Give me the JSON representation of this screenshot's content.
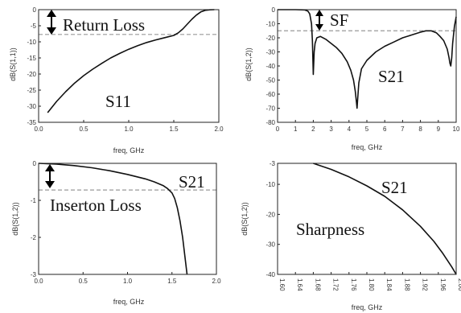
{
  "chart_data": [
    {
      "id": "s11",
      "type": "line",
      "xlabel": "freq, GHz",
      "ylabel": "dB(S(1,1))",
      "xlim": [
        0.0,
        2.0
      ],
      "ylim": [
        -35,
        0
      ],
      "xticks": [
        0.0,
        0.5,
        1.0,
        1.5,
        2.0
      ],
      "xtick_labels": [
        "0.0",
        "0.5",
        "1.0",
        "1.5",
        "2.0"
      ],
      "yticks": [
        0,
        -5,
        -10,
        -15,
        -20,
        -25,
        -30,
        -35
      ],
      "ytick_labels": [
        "0",
        "-5",
        "-10",
        "-15",
        "-20",
        "-25",
        "-30",
        "-35"
      ],
      "series": [
        {
          "x": [
            0.1,
            0.2,
            0.3,
            0.4,
            0.5,
            0.6,
            0.7,
            0.8,
            0.9,
            1.0,
            1.1,
            1.2,
            1.3,
            1.4,
            1.5,
            1.55,
            1.6,
            1.65,
            1.7,
            1.75,
            1.8,
            1.85,
            1.9,
            1.95
          ],
          "values": [
            -32.0,
            -28.5,
            -25.5,
            -22.8,
            -20.5,
            -18.5,
            -16.7,
            -15.0,
            -13.6,
            -12.3,
            -11.2,
            -10.2,
            -9.4,
            -8.7,
            -8.0,
            -7.2,
            -6.0,
            -4.5,
            -3.0,
            -1.7,
            -0.7,
            -0.2,
            -0.05,
            0.0
          ]
        }
      ],
      "reference_line": -7.7,
      "annotations": [
        "Return Loss",
        "S11"
      ]
    },
    {
      "id": "s21-wide",
      "type": "line",
      "xlabel": "freq, GHz",
      "ylabel": "dB(S(1,2))",
      "xlim": [
        0,
        10
      ],
      "ylim": [
        -80,
        0
      ],
      "xticks": [
        0,
        1,
        2,
        3,
        4,
        5,
        6,
        7,
        8,
        9,
        10
      ],
      "xtick_labels": [
        "0",
        "1",
        "2",
        "3",
        "4",
        "5",
        "6",
        "7",
        "8",
        "9",
        "10"
      ],
      "yticks": [
        0,
        -10,
        -20,
        -30,
        -40,
        -50,
        -60,
        -70,
        -80
      ],
      "ytick_labels": [
        "0",
        "-10",
        "-20",
        "-30",
        "-40",
        "-50",
        "-60",
        "-70",
        "-80"
      ],
      "series": [
        {
          "x": [
            0.0,
            1.0,
            1.5,
            1.7,
            1.8,
            1.9,
            1.95,
            2.0,
            2.05,
            2.1,
            2.2,
            2.4,
            2.7,
            3.0,
            3.3,
            3.6,
            3.9,
            4.1,
            4.25,
            4.35,
            4.42,
            4.45,
            4.48,
            4.55,
            4.7,
            5.0,
            5.5,
            6.0,
            6.5,
            7.0,
            7.5,
            8.0,
            8.3,
            8.6,
            8.9,
            9.1,
            9.3,
            9.5,
            9.6,
            9.65,
            9.7,
            9.75,
            9.8,
            9.9,
            10.0
          ],
          "values": [
            0.0,
            0.0,
            -0.2,
            -1.0,
            -3.0,
            -10.0,
            -22.0,
            -46.0,
            -30.0,
            -24.0,
            -20.0,
            -19.0,
            -21.0,
            -24.0,
            -27.0,
            -31.0,
            -37.0,
            -43.0,
            -50.0,
            -58.0,
            -66.0,
            -70.0,
            -64.0,
            -52.0,
            -42.0,
            -36.0,
            -30.0,
            -26.0,
            -23.0,
            -20.0,
            -18.0,
            -16.0,
            -15.0,
            -15.0,
            -16.5,
            -19.0,
            -22.0,
            -28.0,
            -34.0,
            -38.0,
            -40.0,
            -34.0,
            -24.0,
            -12.0,
            -5.0
          ]
        }
      ],
      "reference_line": -15,
      "annotations": [
        "SF",
        "S21"
      ]
    },
    {
      "id": "s21-passband",
      "type": "line",
      "xlabel": "freq, GHz",
      "ylabel": "dB(S(1,2))",
      "xlim": [
        0.0,
        2.0
      ],
      "ylim": [
        -3,
        0
      ],
      "xticks": [
        0.0,
        0.5,
        1.0,
        1.5,
        2.0
      ],
      "xtick_labels": [
        "0.0",
        "0.5",
        "1.0",
        "1.5",
        "2.0"
      ],
      "yticks": [
        0,
        -1,
        -2,
        -3
      ],
      "ytick_labels": [
        "0",
        "-1",
        "-2",
        "-3"
      ],
      "series": [
        {
          "x": [
            0.0,
            0.2,
            0.4,
            0.6,
            0.8,
            1.0,
            1.2,
            1.3,
            1.4,
            1.45,
            1.5,
            1.53,
            1.56,
            1.59,
            1.62,
            1.65,
            1.67
          ],
          "values": [
            0.0,
            -0.02,
            -0.06,
            -0.12,
            -0.2,
            -0.3,
            -0.42,
            -0.5,
            -0.6,
            -0.68,
            -0.8,
            -0.95,
            -1.2,
            -1.55,
            -2.0,
            -2.6,
            -3.0
          ]
        }
      ],
      "reference_line": -0.72,
      "annotations": [
        "Inserton Loss",
        "S21"
      ]
    },
    {
      "id": "s21-sharpness",
      "type": "line",
      "xlabel": "freq, GHz",
      "ylabel": "dB(S(1,2))",
      "xlim": [
        1.6,
        2.0
      ],
      "ylim": [
        -40,
        -3
      ],
      "xticks": [
        1.6,
        1.64,
        1.68,
        1.72,
        1.76,
        1.8,
        1.84,
        1.88,
        1.92,
        1.96,
        2.0
      ],
      "xtick_labels": [
        "1.60",
        "1.64",
        "1.68",
        "1.72",
        "1.76",
        "1.80",
        "1.84",
        "1.88",
        "1.92",
        "1.96",
        "2.00"
      ],
      "yticks": [
        -3,
        -10,
        -20,
        -30,
        -40
      ],
      "ytick_labels": [
        "-3",
        "-10",
        "-20",
        "-30",
        "-40"
      ],
      "series": [
        {
          "x": [
            1.68,
            1.72,
            1.76,
            1.8,
            1.84,
            1.88,
            1.92,
            1.95,
            1.97,
            1.99,
            2.0
          ],
          "values": [
            -3.0,
            -5.0,
            -7.5,
            -10.5,
            -14.0,
            -18.5,
            -24.0,
            -29.0,
            -33.0,
            -37.5,
            -40.0
          ]
        }
      ],
      "reference_line": null,
      "annotations": [
        "S21",
        "Sharpness"
      ]
    }
  ]
}
